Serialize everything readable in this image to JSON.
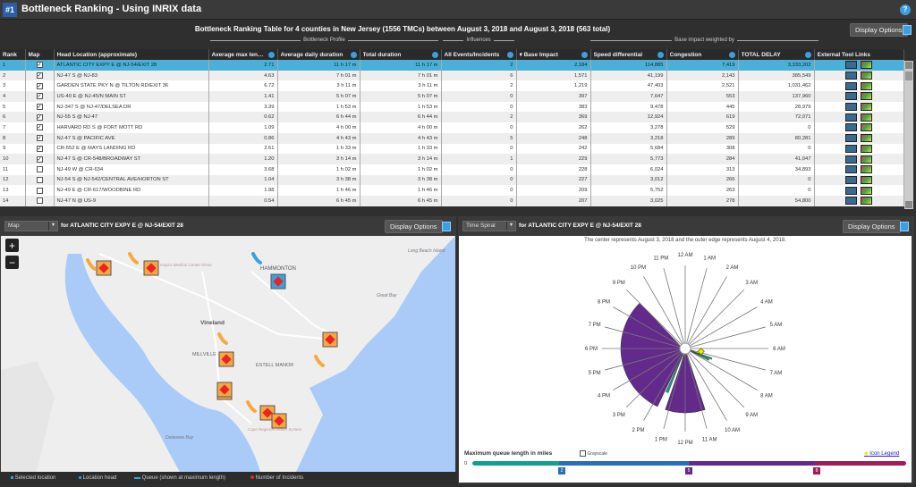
{
  "header": {
    "badge": "#1",
    "title": "Bottleneck Ranking - Using INRIX data",
    "help_icon": "?"
  },
  "table": {
    "title": "Bottleneck Ranking Table for 4 counties in New Jersey (1556 TMCs) between August 3, 2018 and August 3, 2018 (563 total)",
    "display_options": "Display Options",
    "groups": {
      "profile": "Bottleneck Profile",
      "influences": "Influences",
      "weighted": "Base impact weighted by"
    },
    "columns": [
      "Rank",
      "Map",
      "Head Location (approximate)",
      "Average max lengt...",
      "Average daily duration",
      "Total duration",
      "All Events/Incidents",
      "▾ Base Impact",
      "Speed differential",
      "Congestion",
      "TOTAL DELAY",
      "External Tool Links"
    ],
    "rows": [
      [
        "1",
        true,
        "ATLANTIC CITY EXPY E @ NJ-54/EXIT 28",
        "2.71",
        "11 h 17 m",
        "11 h 17 m",
        "2",
        "2,184",
        "114,885",
        "7,419",
        "3,333,202"
      ],
      [
        "2",
        true,
        "NJ-47 S @ NJ-83",
        "4.63",
        "7 h 01 m",
        "7 h 01 m",
        "6",
        "1,571",
        "41,199",
        "2,143",
        "385,549"
      ],
      [
        "3",
        true,
        "GARDEN STATE PKY N @ TILTON RD/EXIT 36",
        "6.72",
        "3 h 11 m",
        "3 h 11 m",
        "2",
        "1,219",
        "47,403",
        "2,521",
        "1,031,462"
      ],
      [
        "4",
        true,
        "US-40 E @ NJ-45/N MAIN ST",
        "1.41",
        "5 h 07 m",
        "5 h 07 m",
        "0",
        "397",
        "7,647",
        "553",
        "137,960"
      ],
      [
        "5",
        true,
        "NJ-347 S @ NJ-47/DELSEA DR",
        "3.39",
        "1 h 53 m",
        "1 h 53 m",
        "0",
        "383",
        "9,478",
        "445",
        "28,979"
      ],
      [
        "6",
        true,
        "NJ-55 S @ NJ-47",
        "0.62",
        "6 h 44 m",
        "6 h 44 m",
        "2",
        "369",
        "12,924",
        "619",
        "72,071"
      ],
      [
        "7",
        true,
        "HARVARD RD S @ FORT MOTT RD",
        "1.09",
        "4 h 00 m",
        "4 h 00 m",
        "0",
        "262",
        "3,278",
        "529",
        "0"
      ],
      [
        "8",
        true,
        "NJ-47 S @ PACIFIC AVE",
        "0.86",
        "4 h 43 m",
        "4 h 43 m",
        "5",
        "248",
        "3,218",
        "289",
        "80,281"
      ],
      [
        "9",
        true,
        "CR-552 E @ MAYS LANDING RD",
        "2.61",
        "1 h 33 m",
        "1 h 33 m",
        "0",
        "242",
        "5,684",
        "308",
        "0"
      ],
      [
        "10",
        true,
        "NJ-47 S @ CR-548/BROADWAY ST",
        "1.20",
        "3 h 14 m",
        "3 h 14 m",
        "1",
        "229",
        "5,773",
        "284",
        "41,047"
      ],
      [
        "11",
        false,
        "NJ-49 W @ CR-634",
        "3.68",
        "1 h 02 m",
        "1 h 02 m",
        "0",
        "228",
        "6,024",
        "313",
        "34,893"
      ],
      [
        "12",
        false,
        "NJ-54 S @ NJ-542/CENTRAL AVE/HORTON ST",
        "1.04",
        "3 h 38 m",
        "3 h 38 m",
        "0",
        "227",
        "3,012",
        "266",
        "0"
      ],
      [
        "13",
        false,
        "NJ-49 E @ CR-617/WOODBINE RD",
        "1.98",
        "1 h 46 m",
        "1 h 46 m",
        "0",
        "209",
        "5,752",
        "263",
        "0"
      ],
      [
        "14",
        false,
        "NJ-47 N @ US-9",
        "0.54",
        "6 h 45 m",
        "6 h 45 m",
        "0",
        "207",
        "3,025",
        "278",
        "54,800"
      ]
    ]
  },
  "map_panel": {
    "view": "Map",
    "for_label": "for ATLANTIC CITY EXPY E @ NJ-54/EXIT 28",
    "display_options": "Display Options",
    "zoom_in": "+",
    "zoom_out": "−",
    "places": [
      "HAMMONTON",
      "Vineland",
      "MILLVILLE",
      "ESTELL MANOR",
      "Long Beach Island",
      "Great Bay",
      "Delaware Bay",
      "Inspira Medical Center Elmer",
      "Cape Regional Health System"
    ],
    "legend": [
      "Selected location",
      "Location head",
      "Queue (shown at maximum length)",
      "Number of Incidents"
    ]
  },
  "spiral_panel": {
    "view": "Time Spiral",
    "for_label": "for ATLANTIC CITY EXPY E @ NJ-54/EXIT 28",
    "display_options": "Display Options",
    "caption": "The center represents August 3, 2018 and the outer edge represents August 4, 2018.",
    "scale_label": "Maximum queue length in miles",
    "grayscale": "Grayscale",
    "icon_legend": "Icon Legend",
    "scale_zero": "0",
    "scale_ticks": [
      "2",
      "5",
      "8"
    ]
  },
  "chart_data": {
    "type": "radial-time-spiral",
    "hours": [
      "12 AM",
      "1 AM",
      "2 AM",
      "3 AM",
      "4 AM",
      "5 AM",
      "6 AM",
      "7 AM",
      "8 AM",
      "9 AM",
      "10 AM",
      "11 AM",
      "12 PM",
      "1 PM",
      "2 PM",
      "3 PM",
      "4 PM",
      "5 PM",
      "6 PM",
      "7 PM",
      "8 PM",
      "9 PM",
      "10 PM",
      "11 PM"
    ],
    "segments": [
      {
        "start_hour": 7.3,
        "end_hour": 7.5,
        "miles": 1.2,
        "color": "#12a08e"
      },
      {
        "start_hour": 7.6,
        "end_hour": 7.8,
        "miles": 1.1,
        "color": "#12a08e"
      },
      {
        "start_hour": 10.8,
        "end_hour": 13.2,
        "miles": 2.71,
        "color": "#632a8c"
      },
      {
        "start_hour": 13.4,
        "end_hour": 13.6,
        "miles": 2.0,
        "color": "#12a08e"
      },
      {
        "start_hour": 13.7,
        "end_hour": 21.0,
        "miles": 2.71,
        "color": "#632a8c"
      }
    ],
    "incident_marker_hour": 6.7,
    "scale_colors": [
      "#12a08e",
      "#2a6eb8",
      "#632a8c",
      "#a01c5a"
    ]
  }
}
